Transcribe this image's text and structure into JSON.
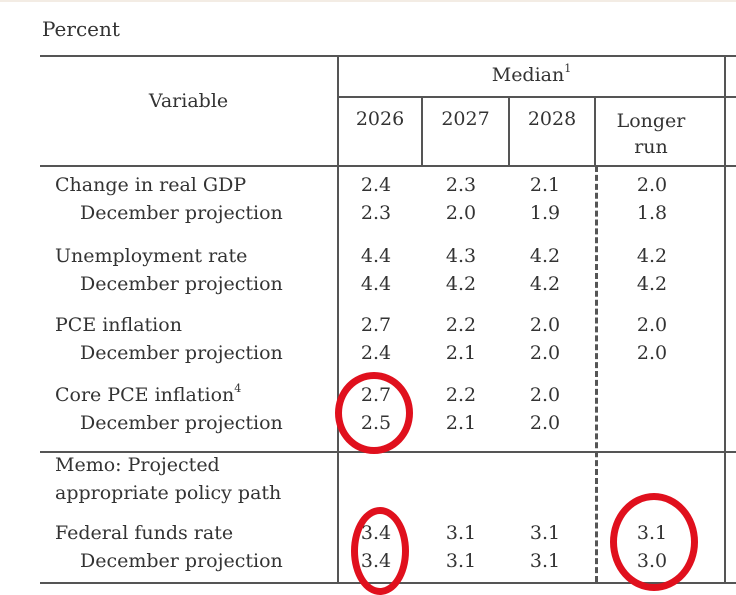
{
  "unit_label": "Percent",
  "header": {
    "variable": "Variable",
    "group": "Median",
    "group_footnote": "1",
    "columns": [
      "2026",
      "2027",
      "2028"
    ],
    "longer_run_line1": "Longer",
    "longer_run_line2": "run"
  },
  "rows": [
    {
      "label": "Change in real GDP",
      "footnote": "",
      "values": [
        "2.4",
        "2.3",
        "2.1",
        "2.0"
      ]
    },
    {
      "label": "December projection",
      "footnote": "",
      "values": [
        "2.3",
        "2.0",
        "1.9",
        "1.8"
      ]
    },
    {
      "label": "Unemployment rate",
      "footnote": "",
      "values": [
        "4.4",
        "4.3",
        "4.2",
        "4.2"
      ]
    },
    {
      "label": "December projection",
      "footnote": "",
      "values": [
        "4.4",
        "4.2",
        "4.2",
        "4.2"
      ]
    },
    {
      "label": "PCE inflation",
      "footnote": "",
      "values": [
        "2.7",
        "2.2",
        "2.0",
        "2.0"
      ]
    },
    {
      "label": "December projection",
      "footnote": "",
      "values": [
        "2.4",
        "2.1",
        "2.0",
        "2.0"
      ]
    },
    {
      "label": "Core PCE inflation",
      "footnote": "4",
      "values": [
        "2.7",
        "2.2",
        "2.0",
        ""
      ]
    },
    {
      "label": "December projection",
      "footnote": "",
      "values": [
        "2.5",
        "2.1",
        "2.0",
        ""
      ]
    }
  ],
  "memo": {
    "line1": "Memo: Projected",
    "line2": "appropriate policy path"
  },
  "memo_rows": [
    {
      "label": "Federal funds rate",
      "values": [
        "3.4",
        "3.1",
        "3.1",
        "3.1"
      ]
    },
    {
      "label": "December projection",
      "values": [
        "3.4",
        "3.1",
        "3.1",
        "3.0"
      ]
    }
  ],
  "annotations": {
    "color": "#e0101d",
    "circled": [
      "Core PCE inflation 2026 (2.7 / 2.5)",
      "Federal funds rate 2026 (3.4 / 3.4)",
      "Federal funds rate Longer run (3.1 / 3.0)"
    ]
  }
}
